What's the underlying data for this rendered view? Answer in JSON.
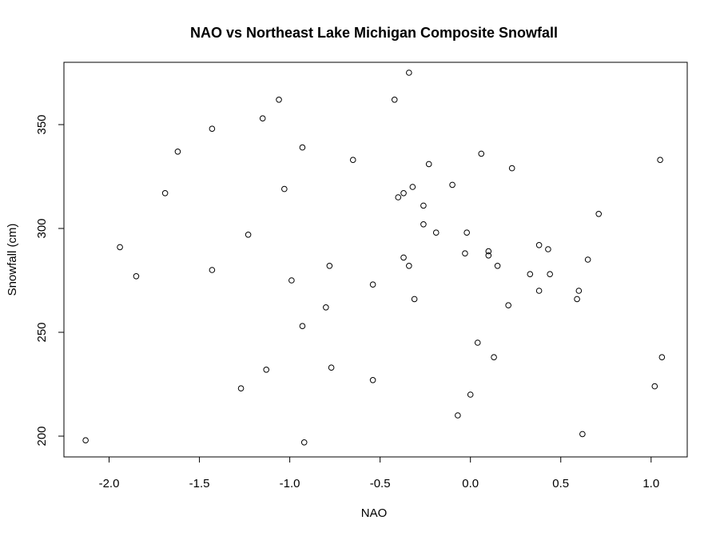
{
  "chart_data": {
    "type": "scatter",
    "title": "NAO vs Northeast Lake Michigan Composite Snowfall",
    "xlabel": "NAO",
    "ylabel": "Snowfall (cm)",
    "xlim": [
      -2.25,
      1.2
    ],
    "ylim": [
      190,
      380
    ],
    "xticks": [
      -2.0,
      -1.5,
      -1.0,
      -0.5,
      0.0,
      0.5,
      1.0
    ],
    "xtick_labels": [
      "-2.0",
      "-1.5",
      "-1.0",
      "-0.5",
      "0.0",
      "0.5",
      "1.0"
    ],
    "yticks": [
      200,
      250,
      300,
      350
    ],
    "ytick_labels": [
      "200",
      "250",
      "300",
      "350"
    ],
    "grid": false,
    "marker": "open-circle",
    "points": [
      {
        "x": -2.13,
        "y": 198
      },
      {
        "x": -1.94,
        "y": 291
      },
      {
        "x": -1.85,
        "y": 277
      },
      {
        "x": -1.69,
        "y": 317
      },
      {
        "x": -1.62,
        "y": 337
      },
      {
        "x": -1.43,
        "y": 348
      },
      {
        "x": -1.43,
        "y": 280
      },
      {
        "x": -1.27,
        "y": 223
      },
      {
        "x": -1.23,
        "y": 297
      },
      {
        "x": -1.15,
        "y": 353
      },
      {
        "x": -1.13,
        "y": 232
      },
      {
        "x": -1.06,
        "y": 362
      },
      {
        "x": -1.03,
        "y": 319
      },
      {
        "x": -0.99,
        "y": 275
      },
      {
        "x": -0.93,
        "y": 339
      },
      {
        "x": -0.93,
        "y": 253
      },
      {
        "x": -0.92,
        "y": 197
      },
      {
        "x": -0.8,
        "y": 262
      },
      {
        "x": -0.78,
        "y": 282
      },
      {
        "x": -0.77,
        "y": 233
      },
      {
        "x": -0.65,
        "y": 333
      },
      {
        "x": -0.54,
        "y": 273
      },
      {
        "x": -0.54,
        "y": 227
      },
      {
        "x": -0.42,
        "y": 362
      },
      {
        "x": -0.4,
        "y": 315
      },
      {
        "x": -0.37,
        "y": 317
      },
      {
        "x": -0.37,
        "y": 286
      },
      {
        "x": -0.34,
        "y": 375
      },
      {
        "x": -0.34,
        "y": 282
      },
      {
        "x": -0.32,
        "y": 320
      },
      {
        "x": -0.31,
        "y": 266
      },
      {
        "x": -0.26,
        "y": 311
      },
      {
        "x": -0.26,
        "y": 302
      },
      {
        "x": -0.23,
        "y": 331
      },
      {
        "x": -0.19,
        "y": 298
      },
      {
        "x": -0.1,
        "y": 321
      },
      {
        "x": -0.07,
        "y": 210
      },
      {
        "x": -0.03,
        "y": 288
      },
      {
        "x": -0.02,
        "y": 298
      },
      {
        "x": 0.0,
        "y": 220
      },
      {
        "x": 0.04,
        "y": 245
      },
      {
        "x": 0.06,
        "y": 336
      },
      {
        "x": 0.1,
        "y": 287
      },
      {
        "x": 0.1,
        "y": 289
      },
      {
        "x": 0.13,
        "y": 238
      },
      {
        "x": 0.15,
        "y": 282
      },
      {
        "x": 0.21,
        "y": 263
      },
      {
        "x": 0.23,
        "y": 329
      },
      {
        "x": 0.33,
        "y": 278
      },
      {
        "x": 0.38,
        "y": 270
      },
      {
        "x": 0.38,
        "y": 292
      },
      {
        "x": 0.43,
        "y": 290
      },
      {
        "x": 0.44,
        "y": 278
      },
      {
        "x": 0.59,
        "y": 266
      },
      {
        "x": 0.6,
        "y": 270
      },
      {
        "x": 0.62,
        "y": 201
      },
      {
        "x": 0.65,
        "y": 285
      },
      {
        "x": 0.71,
        "y": 307
      },
      {
        "x": 1.02,
        "y": 224
      },
      {
        "x": 1.05,
        "y": 333
      },
      {
        "x": 1.06,
        "y": 238
      }
    ]
  }
}
